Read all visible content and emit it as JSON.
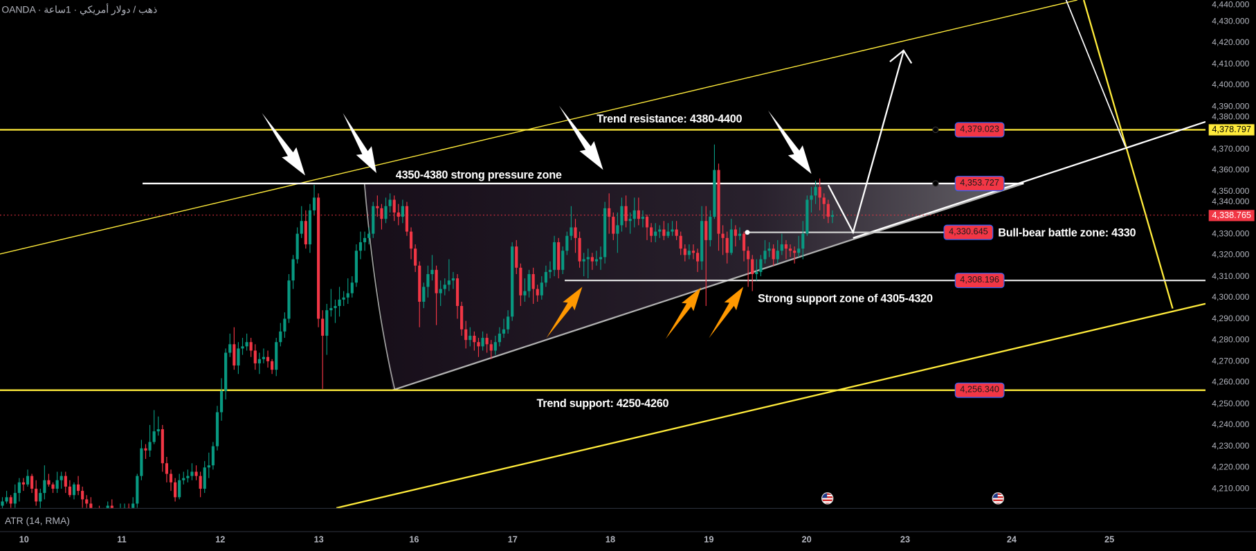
{
  "header": {
    "title": "OANDA · ذهب / دولار أمريكي · 1ساعة"
  },
  "indicator": {
    "label": "ATR (14, RMA)"
  },
  "price_axis": {
    "badges": {
      "alert_level": "4,378.797",
      "last_price": "4,338.765"
    }
  },
  "colors": {
    "up": "#089981",
    "down": "#f23645",
    "trendline": "#ffeb3b",
    "arrow_orange": "#ff9800",
    "background": "#000000"
  },
  "levels": {
    "trend_resistance": "4,379.023",
    "pressure_top": "4,353.727",
    "battle_zone": "4,330.645",
    "support_zone": "4,308.196",
    "trend_support": "4,256.340"
  },
  "annotations": {
    "trend_resistance": "Trend resistance: 4380-4400",
    "pressure_zone": "4350-4380 strong pressure zone",
    "battle_zone": "Bull-bear battle zone: 4330",
    "support_zone": "Strong support zone of 4305-4320",
    "trend_support": "Trend support: 4250-4260"
  },
  "events": [
    {
      "icon": "us-flag-icon"
    },
    {
      "icon": "us-flag-icon"
    }
  ],
  "chart_data": {
    "type": "candlestick",
    "timeframe": "1 hour",
    "ylim": [
      4200,
      4440
    ],
    "y_tick_labels": [
      "4,440.000",
      "4,430.000",
      "4,420.000",
      "4,410.000",
      "4,400.000",
      "4,390.000",
      "4,380.000",
      "4,370.000",
      "4,360.000",
      "4,350.000",
      "4,340.000",
      "4,330.000",
      "4,320.000",
      "4,310.000",
      "4,300.000",
      "4,290.000",
      "4,280.000",
      "4,270.000",
      "4,260.000",
      "4,250.000",
      "4,240.000",
      "4,230.000",
      "4,220.000",
      "4,210.000"
    ],
    "x_tick_labels": [
      "10",
      "11",
      "12",
      "13",
      "16",
      "17",
      "18",
      "19",
      "20",
      "23",
      "24",
      "25"
    ],
    "last_price": 4338.765,
    "horizontal_levels": [
      4379.023,
      4353.727,
      4330.645,
      4308.196,
      4256.34,
      4378.797
    ],
    "candles_ohlc": [
      [
        4202,
        4206,
        4199,
        4204
      ],
      [
        4204,
        4209,
        4203,
        4206
      ],
      [
        4206,
        4207,
        4201,
        4203
      ],
      [
        4203,
        4212,
        4201,
        4208
      ],
      [
        4208,
        4215,
        4204,
        4213
      ],
      [
        4213,
        4215,
        4209,
        4212
      ],
      [
        4212,
        4219,
        4211,
        4216
      ],
      [
        4216,
        4217,
        4208,
        4210
      ],
      [
        4210,
        4214,
        4202,
        4204
      ],
      [
        4204,
        4210,
        4200,
        4208
      ],
      [
        4208,
        4221,
        4205,
        4214
      ],
      [
        4214,
        4217,
        4211,
        4212
      ],
      [
        4212,
        4213,
        4208,
        4210
      ],
      [
        4210,
        4218,
        4208,
        4214
      ],
      [
        4214,
        4218,
        4210,
        4216
      ],
      [
        4216,
        4218,
        4208,
        4211
      ],
      [
        4211,
        4214,
        4206,
        4207
      ],
      [
        4207,
        4213,
        4205,
        4212
      ],
      [
        4212,
        4216,
        4207,
        4209
      ],
      [
        4209,
        4211,
        4201,
        4205
      ],
      [
        4205,
        4207,
        4200,
        4203
      ],
      [
        4203,
        4206,
        4199,
        4200
      ],
      [
        4200,
        4201,
        4196,
        4198
      ],
      [
        4198,
        4202,
        4194,
        4196
      ],
      [
        4196,
        4201,
        4192,
        4199
      ],
      [
        4199,
        4204,
        4196,
        4202
      ],
      [
        4202,
        4205,
        4196,
        4197
      ],
      [
        4197,
        4198,
        4193,
        4195
      ],
      [
        4195,
        4203,
        4193,
        4199
      ],
      [
        4199,
        4203,
        4195,
        4201
      ],
      [
        4201,
        4203,
        4195,
        4198
      ],
      [
        4198,
        4206,
        4197,
        4203
      ],
      [
        4203,
        4217,
        4201,
        4216
      ],
      [
        4216,
        4233,
        4214,
        4229
      ],
      [
        4229,
        4231,
        4224,
        4228
      ],
      [
        4228,
        4240,
        4225,
        4232
      ],
      [
        4232,
        4247,
        4231,
        4237
      ],
      [
        4237,
        4244,
        4235,
        4238
      ],
      [
        4238,
        4240,
        4218,
        4222
      ],
      [
        4222,
        4225,
        4213,
        4217
      ],
      [
        4217,
        4219,
        4209,
        4213
      ],
      [
        4213,
        4215,
        4204,
        4206
      ],
      [
        4206,
        4217,
        4205,
        4214
      ],
      [
        4214,
        4218,
        4212,
        4215
      ],
      [
        4215,
        4219,
        4213,
        4216
      ],
      [
        4216,
        4222,
        4214,
        4218
      ],
      [
        4218,
        4221,
        4214,
        4216
      ],
      [
        4216,
        4218,
        4206,
        4210
      ],
      [
        4210,
        4223,
        4208,
        4220
      ],
      [
        4220,
        4227,
        4215,
        4221
      ],
      [
        4221,
        4232,
        4219,
        4230
      ],
      [
        4230,
        4249,
        4228,
        4246
      ],
      [
        4246,
        4262,
        4242,
        4256
      ],
      [
        4256,
        4276,
        4252,
        4274
      ],
      [
        4274,
        4283,
        4272,
        4278
      ],
      [
        4278,
        4286,
        4266,
        4268
      ],
      [
        4268,
        4279,
        4264,
        4276
      ],
      [
        4276,
        4281,
        4273,
        4277
      ],
      [
        4277,
        4283,
        4275,
        4279
      ],
      [
        4279,
        4281,
        4272,
        4275
      ],
      [
        4275,
        4278,
        4266,
        4269
      ],
      [
        4269,
        4274,
        4264,
        4271
      ],
      [
        4271,
        4276,
        4269,
        4272
      ],
      [
        4272,
        4275,
        4267,
        4270
      ],
      [
        4270,
        4271,
        4264,
        4266
      ],
      [
        4266,
        4281,
        4263,
        4279
      ],
      [
        4279,
        4288,
        4277,
        4284
      ],
      [
        4284,
        4293,
        4281,
        4290
      ],
      [
        4290,
        4311,
        4288,
        4308
      ],
      [
        4308,
        4320,
        4304,
        4318
      ],
      [
        4318,
        4333,
        4316,
        4330
      ],
      [
        4330,
        4343,
        4328,
        4336
      ],
      [
        4336,
        4341,
        4323,
        4325
      ],
      [
        4325,
        4344,
        4321,
        4341
      ],
      [
        4341,
        4353,
        4339,
        4347
      ],
      [
        4347,
        4349,
        4286,
        4290
      ],
      [
        4290,
        4294,
        4257,
        4282
      ],
      [
        4282,
        4297,
        4273,
        4294
      ],
      [
        4294,
        4304,
        4291,
        4295
      ],
      [
        4295,
        4299,
        4288,
        4296
      ],
      [
        4296,
        4305,
        4291,
        4299
      ],
      [
        4299,
        4303,
        4296,
        4300
      ],
      [
        4300,
        4309,
        4297,
        4302
      ],
      [
        4302,
        4310,
        4300,
        4307
      ],
      [
        4307,
        4325,
        4305,
        4322
      ],
      [
        4322,
        4331,
        4318,
        4326
      ],
      [
        4326,
        4331,
        4322,
        4328
      ],
      [
        4328,
        4333,
        4325,
        4330
      ],
      [
        4330,
        4345,
        4328,
        4343
      ],
      [
        4343,
        4348,
        4338,
        4342
      ],
      [
        4342,
        4344,
        4332,
        4337
      ],
      [
        4337,
        4347,
        4335,
        4343
      ],
      [
        4343,
        4349,
        4340,
        4346
      ],
      [
        4346,
        4348,
        4336,
        4340
      ],
      [
        4340,
        4344,
        4334,
        4338
      ],
      [
        4338,
        4346,
        4335,
        4343
      ],
      [
        4343,
        4345,
        4329,
        4331
      ],
      [
        4331,
        4333,
        4318,
        4323
      ],
      [
        4323,
        4325,
        4312,
        4315
      ],
      [
        4315,
        4317,
        4286,
        4298
      ],
      [
        4298,
        4307,
        4295,
        4305
      ],
      [
        4305,
        4315,
        4300,
        4311
      ],
      [
        4311,
        4320,
        4308,
        4313
      ],
      [
        4313,
        4315,
        4287,
        4302
      ],
      [
        4302,
        4308,
        4296,
        4304
      ],
      [
        4304,
        4309,
        4301,
        4306
      ],
      [
        4306,
        4318,
        4303,
        4308
      ],
      [
        4308,
        4312,
        4304,
        4309
      ],
      [
        4309,
        4311,
        4290,
        4296
      ],
      [
        4296,
        4298,
        4282,
        4285
      ],
      [
        4285,
        4289,
        4276,
        4280
      ],
      [
        4280,
        4286,
        4277,
        4282
      ],
      [
        4282,
        4284,
        4275,
        4279
      ],
      [
        4279,
        4281,
        4272,
        4277
      ],
      [
        4277,
        4284,
        4275,
        4281
      ],
      [
        4281,
        4283,
        4274,
        4278
      ],
      [
        4278,
        4280,
        4271,
        4275
      ],
      [
        4275,
        4282,
        4273,
        4279
      ],
      [
        4279,
        4286,
        4277,
        4283
      ],
      [
        4283,
        4290,
        4281,
        4285
      ],
      [
        4285,
        4294,
        4283,
        4291
      ],
      [
        4291,
        4326,
        4289,
        4324
      ],
      [
        4324,
        4327,
        4311,
        4314
      ],
      [
        4314,
        4316,
        4296,
        4301
      ],
      [
        4301,
        4309,
        4298,
        4303
      ],
      [
        4303,
        4313,
        4300,
        4311
      ],
      [
        4311,
        4314,
        4297,
        4304
      ],
      [
        4304,
        4306,
        4298,
        4301
      ],
      [
        4301,
        4310,
        4299,
        4307
      ],
      [
        4307,
        4315,
        4305,
        4312
      ],
      [
        4312,
        4317,
        4309,
        4313
      ],
      [
        4313,
        4329,
        4310,
        4326
      ],
      [
        4326,
        4328,
        4309,
        4313
      ],
      [
        4313,
        4324,
        4311,
        4322
      ],
      [
        4322,
        4331,
        4320,
        4329
      ],
      [
        4329,
        4343,
        4327,
        4333
      ],
      [
        4333,
        4337,
        4321,
        4328
      ],
      [
        4328,
        4331,
        4314,
        4317
      ],
      [
        4317,
        4321,
        4310,
        4318
      ],
      [
        4318,
        4323,
        4309,
        4319
      ],
      [
        4319,
        4321,
        4313,
        4317
      ],
      [
        4317,
        4322,
        4315,
        4318
      ],
      [
        4318,
        4324,
        4313,
        4319
      ],
      [
        4319,
        4345,
        4316,
        4342
      ],
      [
        4342,
        4349,
        4330,
        4338
      ],
      [
        4338,
        4340,
        4327,
        4330
      ],
      [
        4330,
        4340,
        4321,
        4334
      ],
      [
        4334,
        4347,
        4331,
        4343
      ],
      [
        4343,
        4348,
        4333,
        4336
      ],
      [
        4336,
        4340,
        4330,
        4337
      ],
      [
        4337,
        4347,
        4333,
        4341
      ],
      [
        4341,
        4347,
        4334,
        4337
      ],
      [
        4337,
        4341,
        4333,
        4338
      ],
      [
        4338,
        4339,
        4327,
        4333
      ],
      [
        4333,
        4335,
        4326,
        4329
      ],
      [
        4329,
        4335,
        4326,
        4331
      ],
      [
        4331,
        4334,
        4328,
        4332
      ],
      [
        4332,
        4336,
        4327,
        4329
      ],
      [
        4329,
        4335,
        4328,
        4331
      ],
      [
        4331,
        4336,
        4329,
        4332
      ],
      [
        4332,
        4336,
        4327,
        4329
      ],
      [
        4329,
        4331,
        4320,
        4323
      ],
      [
        4323,
        4325,
        4317,
        4320
      ],
      [
        4320,
        4325,
        4318,
        4322
      ],
      [
        4322,
        4325,
        4318,
        4321
      ],
      [
        4321,
        4323,
        4312,
        4317
      ],
      [
        4317,
        4343,
        4313,
        4336
      ],
      [
        4336,
        4343,
        4296,
        4327
      ],
      [
        4327,
        4341,
        4324,
        4338
      ],
      [
        4338,
        4372,
        4337,
        4360
      ],
      [
        4360,
        4363,
        4322,
        4330
      ],
      [
        4330,
        4334,
        4320,
        4328
      ],
      [
        4328,
        4331,
        4316,
        4321
      ],
      [
        4321,
        4337,
        4320,
        4332
      ],
      [
        4332,
        4334,
        4324,
        4329
      ],
      [
        4329,
        4333,
        4327,
        4330
      ],
      [
        4330,
        4331,
        4317,
        4322
      ],
      [
        4322,
        4324,
        4305,
        4318
      ],
      [
        4318,
        4320,
        4303,
        4311
      ],
      [
        4311,
        4318,
        4308,
        4312
      ],
      [
        4312,
        4320,
        4310,
        4318
      ],
      [
        4318,
        4327,
        4316,
        4322
      ],
      [
        4322,
        4326,
        4319,
        4323
      ],
      [
        4323,
        4325,
        4315,
        4318
      ],
      [
        4318,
        4327,
        4316,
        4322
      ],
      [
        4322,
        4330,
        4320,
        4325
      ],
      [
        4325,
        4327,
        4318,
        4323
      ],
      [
        4323,
        4325,
        4319,
        4322
      ],
      [
        4322,
        4324,
        4316,
        4321
      ],
      [
        4321,
        4329,
        4319,
        4323
      ],
      [
        4323,
        4336,
        4318,
        4330
      ],
      [
        4330,
        4348,
        4329,
        4346
      ],
      [
        4346,
        4352,
        4340,
        4348
      ],
      [
        4348,
        4355,
        4344,
        4352
      ],
      [
        4352,
        4356,
        4341,
        4347
      ],
      [
        4347,
        4349,
        4337,
        4344
      ],
      [
        4344,
        4346,
        4335,
        4338
      ],
      [
        4338,
        4341,
        4335,
        4338.765
      ]
    ]
  }
}
